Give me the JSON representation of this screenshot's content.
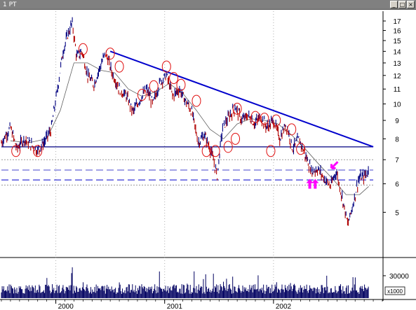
{
  "window": {
    "title": "1 PT",
    "buttons": {
      "minimize": "_",
      "maximize": "□",
      "close": "×"
    }
  },
  "chart_data": {
    "type": "candlestick",
    "title": "1 PT",
    "price_axis": {
      "ticks": [
        5,
        6,
        7,
        8,
        9,
        10,
        11,
        12,
        13,
        14,
        15,
        16,
        17
      ],
      "scale": "log",
      "range": [
        4.3,
        17.4
      ]
    },
    "time_axis": {
      "year_labels": [
        "2000",
        "2001",
        "2002"
      ],
      "year_start_month_index": [
        6,
        18,
        30
      ],
      "month_count": 42
    },
    "volume_axis": {
      "tick": "30000",
      "unit_label": "x1000"
    },
    "price_path": [
      [
        0,
        7.8
      ],
      [
        1,
        8.6
      ],
      [
        1.7,
        7.5
      ],
      [
        2.5,
        8.0
      ],
      [
        3.3,
        7.7
      ],
      [
        4.0,
        7.4
      ],
      [
        4.8,
        7.9
      ],
      [
        5.5,
        8.5
      ],
      [
        6.2,
        11.0
      ],
      [
        6.8,
        14.0
      ],
      [
        7.3,
        15.5
      ],
      [
        7.8,
        16.8
      ],
      [
        8.3,
        13.5
      ],
      [
        8.9,
        14.0
      ],
      [
        9.5,
        12.0
      ],
      [
        10.2,
        11.3
      ],
      [
        10.8,
        12.5
      ],
      [
        11.5,
        13.9
      ],
      [
        12.2,
        12.2
      ],
      [
        13.0,
        11.0
      ],
      [
        13.8,
        10.5
      ],
      [
        14.5,
        9.5
      ],
      [
        15.2,
        10.2
      ],
      [
        16.0,
        11.0
      ],
      [
        16.7,
        10.0
      ],
      [
        17.5,
        11.5
      ],
      [
        18.2,
        12.0
      ],
      [
        18.9,
        10.5
      ],
      [
        19.6,
        11.0
      ],
      [
        20.3,
        10.2
      ],
      [
        21.0,
        9.5
      ],
      [
        21.7,
        7.8
      ],
      [
        22.4,
        8.2
      ],
      [
        23.1,
        7.4
      ],
      [
        23.8,
        6.3
      ],
      [
        24.4,
        8.6
      ],
      [
        25.1,
        9.2
      ],
      [
        25.8,
        9.8
      ],
      [
        26.5,
        9.0
      ],
      [
        27.2,
        9.3
      ],
      [
        27.9,
        8.8
      ],
      [
        28.6,
        9.2
      ],
      [
        29.3,
        8.6
      ],
      [
        30.0,
        9.0
      ],
      [
        30.7,
        8.0
      ],
      [
        31.4,
        8.8
      ],
      [
        32.1,
        7.5
      ],
      [
        32.8,
        8.0
      ],
      [
        33.5,
        7.2
      ],
      [
        34.2,
        6.5
      ],
      [
        34.9,
        6.6
      ],
      [
        35.6,
        6.2
      ],
      [
        36.3,
        5.9
      ],
      [
        36.9,
        6.5
      ],
      [
        37.5,
        5.6
      ],
      [
        38.2,
        4.6
      ],
      [
        38.8,
        5.3
      ],
      [
        39.4,
        6.2
      ],
      [
        40.0,
        6.3
      ],
      [
        40.5,
        6.5
      ]
    ],
    "moving_average": [
      [
        1,
        7.9
      ],
      [
        3,
        7.8
      ],
      [
        5,
        8.0
      ],
      [
        6.5,
        9.6
      ],
      [
        8,
        13.0
      ],
      [
        9.5,
        13.0
      ],
      [
        11,
        12.4
      ],
      [
        12.5,
        12.2
      ],
      [
        14,
        11.0
      ],
      [
        15.5,
        10.5
      ],
      [
        17,
        10.8
      ],
      [
        18.5,
        11.4
      ],
      [
        20,
        10.7
      ],
      [
        21.5,
        9.6
      ],
      [
        23,
        8.5
      ],
      [
        24.5,
        8.0
      ],
      [
        26,
        8.8
      ],
      [
        27.5,
        9.1
      ],
      [
        29,
        9.0
      ],
      [
        30.5,
        8.8
      ],
      [
        32,
        8.2
      ],
      [
        33.5,
        7.5
      ],
      [
        35,
        6.8
      ],
      [
        36.5,
        6.2
      ],
      [
        38,
        5.6
      ],
      [
        39.5,
        5.6
      ],
      [
        40.5,
        5.9
      ]
    ],
    "lines": [
      {
        "name": "downtrend",
        "from": [
          12.0,
          14.0
        ],
        "to": [
          41.0,
          7.6
        ],
        "color": "#0000cc",
        "style": "solid"
      },
      {
        "name": "support",
        "from": [
          0,
          7.6
        ],
        "to": [
          41.0,
          7.6
        ],
        "color": "#000080",
        "style": "solid"
      },
      {
        "name": "level-a",
        "from": [
          0,
          6.55
        ],
        "to": [
          41.0,
          6.55
        ],
        "color": "#4444cc",
        "style": "dashed"
      },
      {
        "name": "level-b",
        "from": [
          0,
          6.15
        ],
        "to": [
          41.0,
          6.15
        ],
        "color": "#0000cc",
        "style": "dashed"
      },
      {
        "name": "level-c",
        "from": [
          0,
          7.0
        ],
        "to": [
          41.0,
          7.0
        ],
        "color": "#999999",
        "style": "dotted"
      },
      {
        "name": "level-d",
        "from": [
          0,
          5.95
        ],
        "to": [
          41.0,
          5.95
        ],
        "color": "#999999",
        "style": "dotted"
      }
    ],
    "markers": {
      "circles": [
        [
          1.6,
          7.4
        ],
        [
          4.0,
          7.4
        ],
        [
          9.0,
          14.2
        ],
        [
          12.0,
          13.8
        ],
        [
          13.0,
          12.7
        ],
        [
          15.5,
          10.6
        ],
        [
          16.8,
          11.2
        ],
        [
          18.2,
          12.7
        ],
        [
          19.0,
          11.8
        ],
        [
          19.8,
          11.3
        ],
        [
          21.5,
          10.2
        ],
        [
          22.6,
          7.4
        ],
        [
          23.6,
          7.4
        ],
        [
          25.0,
          7.6
        ],
        [
          25.8,
          8.0
        ],
        [
          26.0,
          9.7
        ],
        [
          28.0,
          9.2
        ],
        [
          29.0,
          9.1
        ],
        [
          30.3,
          9.0
        ],
        [
          32.0,
          8.5
        ],
        [
          29.7,
          7.4
        ],
        [
          33.0,
          7.5
        ]
      ],
      "arrows_up": [
        [
          34.0,
          6.0
        ],
        [
          34.6,
          6.0
        ]
      ],
      "arrow_down": [
        [
          36.7,
          6.75
        ]
      ]
    },
    "grid": {
      "vertical_dotted": true
    }
  }
}
